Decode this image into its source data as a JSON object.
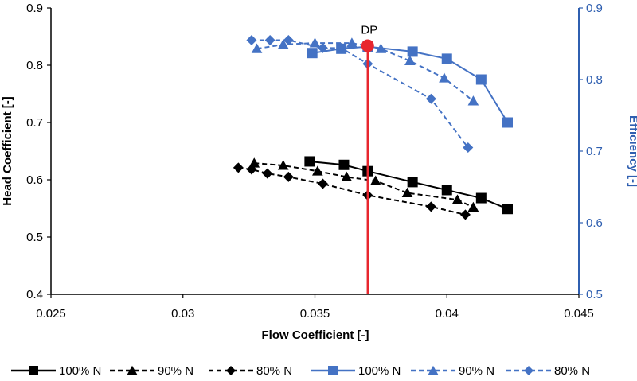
{
  "chart_data": {
    "type": "line",
    "xlabel": "Flow Coefficient [-]",
    "ylabel": "Head Coefficient [-]",
    "y2label": "Efficiency [-]",
    "xlim": [
      0.025,
      0.045
    ],
    "ylim": [
      0.4,
      0.9
    ],
    "y2lim": [
      0.5,
      0.9
    ],
    "xticks": [
      "0.025",
      "0.03",
      "0.035",
      "0.04",
      "0.045"
    ],
    "yticks": [
      "0.4",
      "0.5",
      "0.6",
      "0.7",
      "0.8",
      "0.9"
    ],
    "y2ticks": [
      "0.5",
      "0.6",
      "0.7",
      "0.8",
      "0.9"
    ],
    "grid": false,
    "legend_position": "bottom",
    "colors": {
      "head": "#000000",
      "efficiency": "#4472c4",
      "design_point": "#e8262e",
      "axis2": "#2f5fb0"
    },
    "annotation": {
      "label": "DP",
      "x": 0.037,
      "y": 0.834
    },
    "series": [
      {
        "name": "100% N",
        "axis": "left",
        "marker": "square",
        "dash": "solid",
        "x": [
          0.0348,
          0.0361,
          0.037,
          0.0387,
          0.04,
          0.0413,
          0.0423
        ],
        "y": [
          0.632,
          0.626,
          0.615,
          0.596,
          0.582,
          0.568,
          0.549
        ]
      },
      {
        "name": "90% N",
        "axis": "left",
        "marker": "triangle",
        "dash": "dashed",
        "x": [
          0.0327,
          0.0338,
          0.0351,
          0.0362,
          0.0373,
          0.0385,
          0.0404,
          0.041
        ],
        "y": [
          0.629,
          0.625,
          0.615,
          0.605,
          0.598,
          0.577,
          0.565,
          0.552
        ]
      },
      {
        "name": "80% N",
        "axis": "left",
        "marker": "diamond",
        "dash": "dashed",
        "x": [
          0.0321,
          0.0326,
          0.0332,
          0.034,
          0.0353,
          0.037,
          0.0394,
          0.0407
        ],
        "y": [
          0.621,
          0.618,
          0.611,
          0.605,
          0.593,
          0.573,
          0.553,
          0.539
        ]
      },
      {
        "name": "100% N",
        "axis": "right",
        "marker": "square",
        "dash": "solid",
        "x": [
          0.0349,
          0.036,
          0.037,
          0.0387,
          0.04,
          0.0413,
          0.0423
        ],
        "y": [
          0.837,
          0.843,
          0.846,
          0.839,
          0.829,
          0.8,
          0.74
        ]
      },
      {
        "name": "90% N",
        "axis": "right",
        "marker": "triangle",
        "dash": "dashed",
        "x": [
          0.0328,
          0.0338,
          0.035,
          0.0364,
          0.0375,
          0.0386,
          0.0399,
          0.041
        ],
        "y": [
          0.843,
          0.849,
          0.851,
          0.851,
          0.843,
          0.826,
          0.802,
          0.77
        ]
      },
      {
        "name": "80% N",
        "axis": "right",
        "marker": "diamond",
        "dash": "dashed",
        "x": [
          0.0326,
          0.0333,
          0.034,
          0.0353,
          0.036,
          0.037,
          0.0394,
          0.0408
        ],
        "y": [
          0.855,
          0.855,
          0.855,
          0.844,
          0.844,
          0.822,
          0.773,
          0.705
        ]
      }
    ]
  }
}
